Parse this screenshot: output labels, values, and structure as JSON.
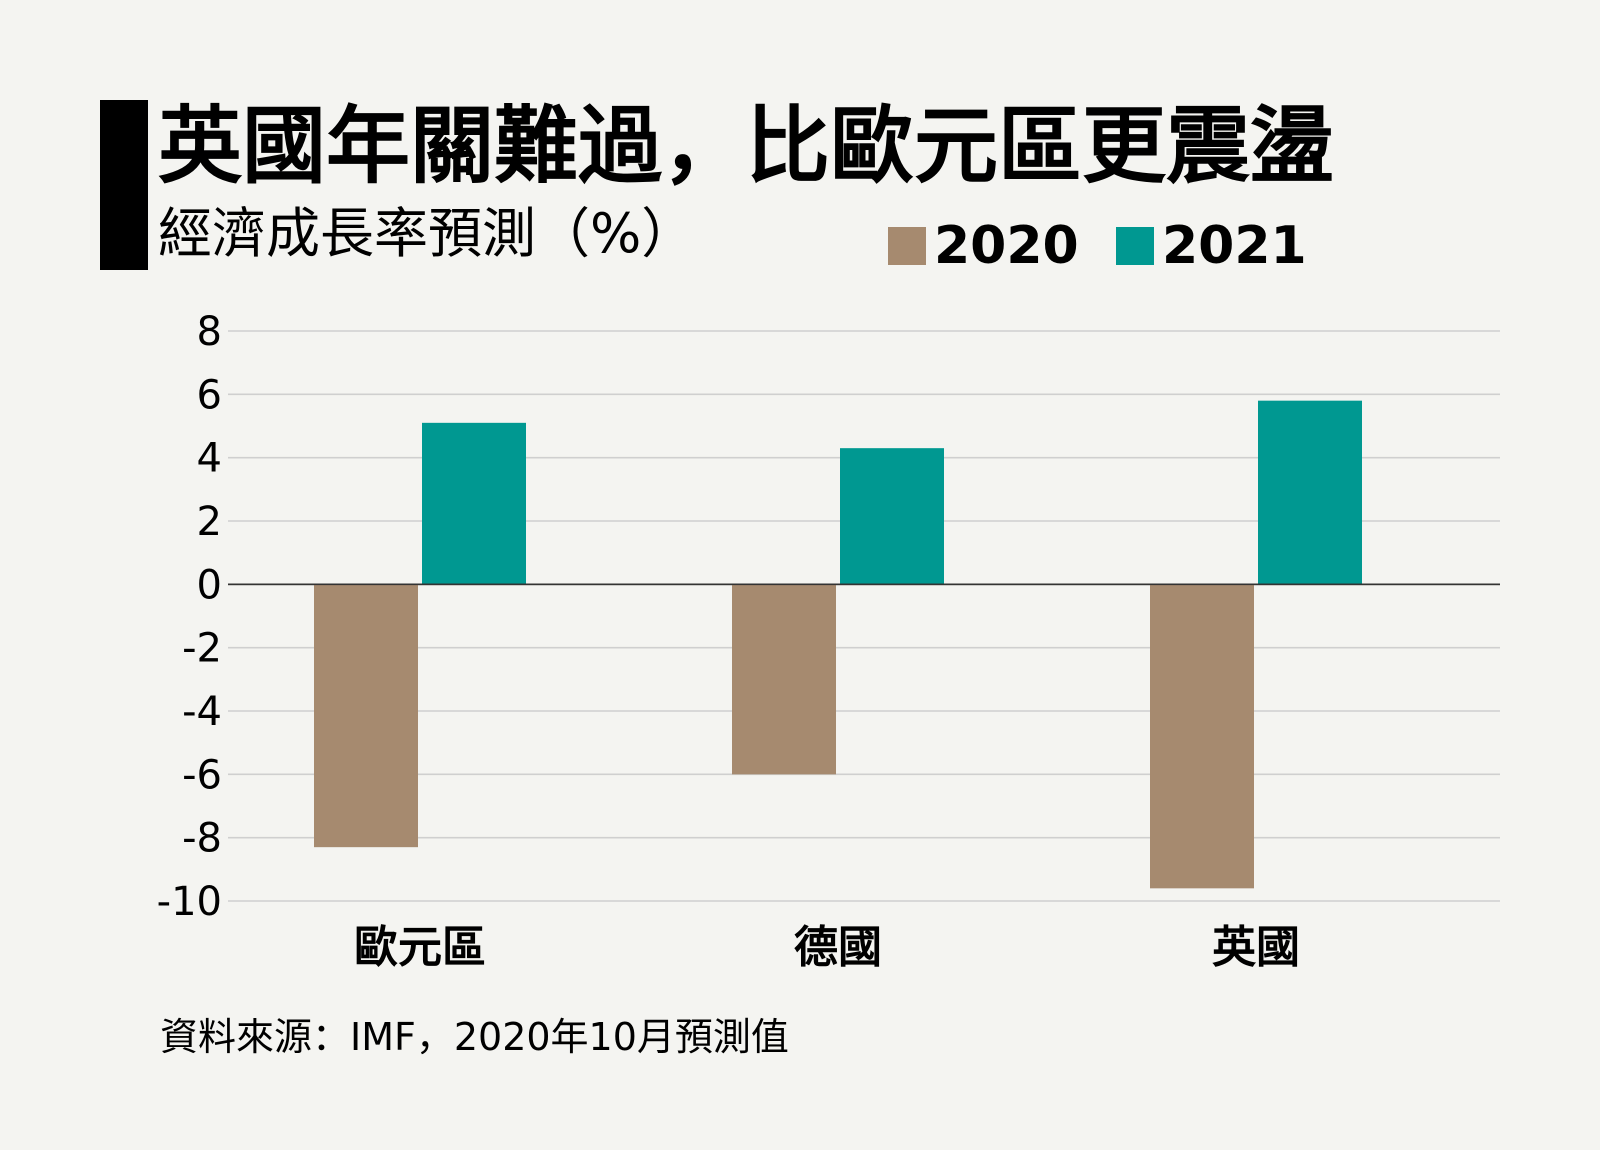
{
  "title": "英國年關難過，比歐元區更震盪",
  "subtitle": "經濟成長率預測（%）",
  "source": "資料來源：IMF，2020年10月預測值",
  "colors": {
    "s2020": "#a68a6f",
    "s2021": "#009891",
    "grid": "#cfcfcf",
    "zero": "#333333"
  },
  "legend": [
    {
      "label": "2020",
      "color": "#a68a6f"
    },
    {
      "label": "2021",
      "color": "#009891"
    }
  ],
  "chart_data": {
    "type": "bar",
    "title": "英國年關難過，比歐元區更震盪",
    "ylabel": "經濟成長率預測（%）",
    "categories": [
      "歐元區",
      "德國",
      "英國"
    ],
    "series": [
      {
        "name": "2020",
        "values": [
          -8.3,
          -6.0,
          -9.6
        ]
      },
      {
        "name": "2021",
        "values": [
          5.1,
          4.3,
          5.8
        ]
      }
    ],
    "ylim": [
      -10,
      8
    ],
    "yticks": [
      8,
      6,
      4,
      2,
      0,
      -2,
      -4,
      -6,
      -8,
      -10
    ],
    "grid": true,
    "legend": "top-right"
  }
}
